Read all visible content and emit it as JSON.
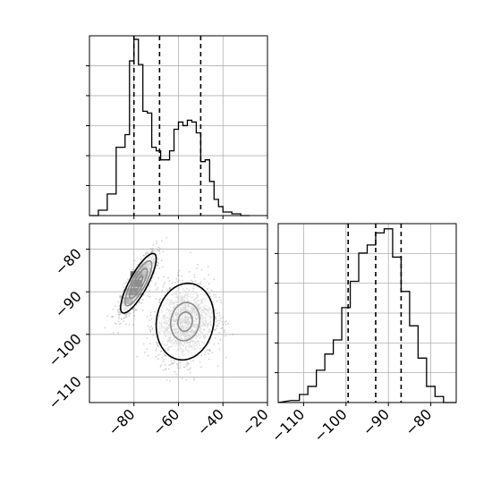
{
  "chart_data": [
    {
      "type": "histogram",
      "panel": "top-left",
      "x_range": [
        -100,
        -20
      ],
      "x_ticks": [
        -80,
        -60,
        -40,
        -20
      ],
      "grid": true,
      "tick_labels_shown": false,
      "bin_edges": [
        -100,
        -96,
        -92,
        -88,
        -84,
        -82,
        -80,
        -78,
        -76,
        -74,
        -72,
        -70,
        -68,
        -66,
        -64,
        -62,
        -60,
        -58,
        -56,
        -54,
        -52,
        -50,
        -48,
        -46,
        -44,
        -42,
        -40,
        -36,
        -32,
        -28
      ],
      "counts": [
        0,
        3,
        12,
        38,
        45,
        86,
        98,
        84,
        58,
        57,
        38,
        36,
        31,
        31,
        36,
        48,
        52,
        50,
        53,
        52,
        46,
        30,
        31,
        19,
        9,
        5,
        2,
        1,
        0
      ],
      "quantile_lines": [
        -80,
        -68.5,
        -50
      ]
    },
    {
      "type": "scatter+contour",
      "panel": "bottom-left",
      "x_range": [
        -100,
        -20
      ],
      "y_range": [
        -116,
        -74
      ],
      "x_ticks": [
        -80,
        -60,
        -40,
        -20
      ],
      "y_ticks": [
        -80,
        -90,
        -100,
        -110
      ],
      "grid": true,
      "clusters": [
        {
          "center": [
            -78,
            -88
          ],
          "sigma": [
            4,
            3.5
          ],
          "correlation": 0.82,
          "points": 1100
        },
        {
          "center": [
            -57,
            -97
          ],
          "sigma": [
            6.5,
            4.5
          ],
          "correlation": 0.1,
          "points": 1700
        }
      ],
      "contours": [
        {
          "cluster": 0,
          "levels": [
            0.5,
            1.0,
            1.5,
            2.0
          ]
        },
        {
          "cluster": 1,
          "levels": [
            0.5,
            1.0,
            2.0
          ]
        }
      ]
    },
    {
      "type": "histogram",
      "panel": "bottom-right",
      "x_range": [
        -116,
        -74
      ],
      "x_ticks": [
        -110,
        -100,
        -90,
        -80
      ],
      "grid": true,
      "bin_edges": [
        -113,
        -111,
        -109,
        -107,
        -105,
        -103,
        -101,
        -99,
        -97,
        -95,
        -93,
        -91,
        -89,
        -87,
        -85,
        -83,
        -81,
        -79,
        -77
      ],
      "counts": [
        1,
        4,
        8,
        16,
        24,
        31,
        47,
        60,
        74,
        78,
        84,
        86,
        72,
        55,
        38,
        22,
        8,
        3
      ],
      "quantile_lines": [
        -99.5,
        -93,
        -87
      ]
    }
  ],
  "axes": {
    "hist_top_ticks": [
      "−80",
      "−60",
      "−40",
      "−20"
    ],
    "scatter_x_ticks": [
      "−80",
      "−60",
      "−40",
      "−20"
    ],
    "scatter_y_ticks": [
      "−80",
      "−90",
      "−100",
      "−110"
    ],
    "hist_right_ticks": [
      "−110",
      "−100",
      "−90",
      "−80"
    ]
  },
  "colors": {
    "line": "#000000",
    "grid": "#b0b0b0",
    "points": "#808080",
    "background": "#ffffff"
  }
}
